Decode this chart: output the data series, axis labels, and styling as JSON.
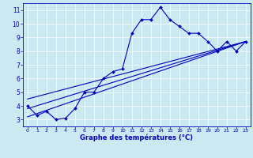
{
  "xlabel": "Graphe des températures (°C)",
  "bg_color": "#cce8f0",
  "line_color": "#0000bb",
  "xlim": [
    -0.5,
    23.5
  ],
  "ylim": [
    2.5,
    11.5
  ],
  "xticks": [
    0,
    1,
    2,
    3,
    4,
    5,
    6,
    7,
    8,
    9,
    10,
    11,
    12,
    13,
    14,
    15,
    16,
    17,
    18,
    19,
    20,
    21,
    22,
    23
  ],
  "yticks": [
    3,
    4,
    5,
    6,
    7,
    8,
    9,
    10,
    11
  ],
  "line1_x": [
    0,
    1,
    2,
    3,
    4,
    5,
    6,
    7,
    8,
    9,
    10,
    11,
    12,
    13,
    14,
    15,
    16,
    17,
    18,
    19,
    20,
    21,
    22,
    23
  ],
  "line1_y": [
    4.0,
    3.3,
    3.6,
    3.0,
    3.1,
    3.8,
    5.0,
    5.0,
    6.0,
    6.5,
    6.7,
    9.3,
    10.3,
    10.3,
    11.2,
    10.3,
    9.8,
    9.3,
    9.3,
    8.7,
    8.0,
    8.7,
    8.0,
    8.7
  ],
  "line2_x": [
    0,
    23
  ],
  "line2_y": [
    3.2,
    8.7
  ],
  "line3_x": [
    0,
    23
  ],
  "line3_y": [
    3.8,
    8.7
  ],
  "line4_x": [
    0,
    23
  ],
  "line4_y": [
    4.5,
    8.7
  ]
}
